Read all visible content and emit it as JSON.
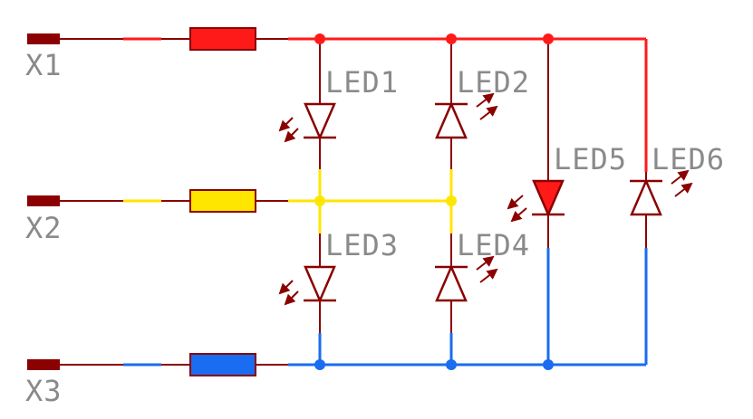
{
  "colors": {
    "wire": "#8b0000",
    "red": "#ff1a1a",
    "yellow": "#ffe600",
    "blue": "#1a6cf0",
    "label": "#8a8a8a"
  },
  "terminals": [
    "X1",
    "X2",
    "X3"
  ],
  "leds": [
    "LED1",
    "LED2",
    "LED3",
    "LED4",
    "LED5",
    "LED6"
  ]
}
